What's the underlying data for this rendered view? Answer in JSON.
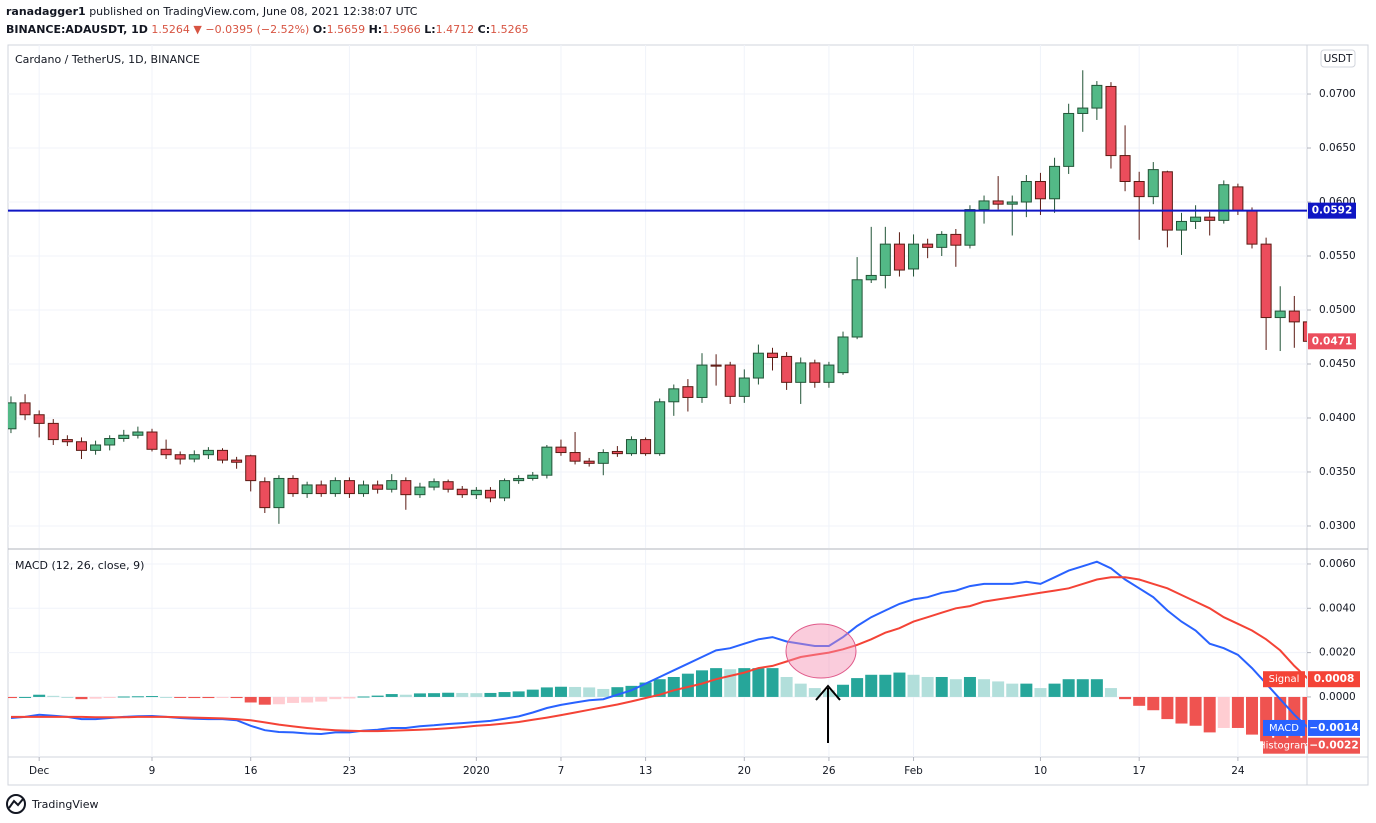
{
  "header": {
    "user": "ranadagger1",
    "published": "published on TradingView.com, June 08, 2021 12:38:07 UTC",
    "symbol": "BINANCE:ADAUSDT, 1D",
    "last": "1.5264",
    "arrow": "▼",
    "change": "−0.0395 (−2.52%)",
    "ohlc": [
      {
        "label": "O:",
        "value": "1.5659"
      },
      {
        "label": "H:",
        "value": "1.5966"
      },
      {
        "label": "L:",
        "value": "1.4712"
      },
      {
        "label": "C:",
        "value": "1.5265"
      }
    ]
  },
  "brand": "TradingView",
  "chart_data": [
    {
      "type": "candlestick",
      "title": "Cardano / TetherUS, 1D, BINANCE",
      "currency": "USDT",
      "up_color": "#53b987",
      "down_color": "#eb4d5c",
      "up_border": "#225437",
      "down_border": "#5b1a13",
      "open": [
        0.039,
        0.0414,
        0.0403,
        0.0395,
        0.038,
        0.0378,
        0.037,
        0.0375,
        0.0381,
        0.0384,
        0.0387,
        0.0371,
        0.0366,
        0.0362,
        0.0366,
        0.037,
        0.0361,
        0.0365,
        0.0341,
        0.0317,
        0.0344,
        0.033,
        0.0338,
        0.033,
        0.0342,
        0.033,
        0.0338,
        0.0334,
        0.0342,
        0.0329,
        0.0336,
        0.0341,
        0.0334,
        0.0329,
        0.0333,
        0.0326,
        0.0342,
        0.0344,
        0.0347,
        0.0373,
        0.0368,
        0.036,
        0.0358,
        0.0369,
        0.0367,
        0.038,
        0.0367,
        0.0415,
        0.0429,
        0.0419,
        0.0449,
        0.0449,
        0.042,
        0.0437,
        0.046,
        0.0457,
        0.0433,
        0.0451,
        0.0433,
        0.0442,
        0.0475,
        0.0528,
        0.0532,
        0.0561,
        0.0538,
        0.0561,
        0.0558,
        0.057,
        0.056,
        0.0593,
        0.0601,
        0.0598,
        0.06,
        0.0619,
        0.0603,
        0.0633,
        0.0682,
        0.0687,
        0.0707,
        0.0643,
        0.0619,
        0.0605,
        0.0628,
        0.0574,
        0.0582,
        0.0586,
        0.0583,
        0.0614,
        0.0592,
        0.0561,
        0.0493,
        0.0499,
        0.0489
      ],
      "high": [
        0.042,
        0.0422,
        0.0407,
        0.0399,
        0.0384,
        0.0382,
        0.0379,
        0.0384,
        0.0389,
        0.0392,
        0.039,
        0.038,
        0.0369,
        0.037,
        0.0373,
        0.0372,
        0.0364,
        0.0366,
        0.0345,
        0.0347,
        0.0347,
        0.0341,
        0.0342,
        0.0345,
        0.0345,
        0.0342,
        0.0342,
        0.0348,
        0.0345,
        0.034,
        0.0344,
        0.0343,
        0.0337,
        0.0336,
        0.0336,
        0.0344,
        0.0347,
        0.035,
        0.0375,
        0.038,
        0.0387,
        0.0363,
        0.0371,
        0.0374,
        0.0383,
        0.0382,
        0.0418,
        0.0431,
        0.0436,
        0.046,
        0.0459,
        0.0452,
        0.0445,
        0.0468,
        0.0465,
        0.0461,
        0.0456,
        0.0454,
        0.0452,
        0.048,
        0.0549,
        0.0577,
        0.0577,
        0.0572,
        0.057,
        0.0566,
        0.0573,
        0.0575,
        0.0597,
        0.0606,
        0.0624,
        0.0606,
        0.0625,
        0.0627,
        0.0641,
        0.0691,
        0.0722,
        0.0712,
        0.0711,
        0.0671,
        0.0628,
        0.0637,
        0.0629,
        0.059,
        0.0597,
        0.0591,
        0.062,
        0.0617,
        0.0595,
        0.0567,
        0.0522,
        0.0513,
        0.0495
      ],
      "low": [
        0.0386,
        0.0398,
        0.0382,
        0.0375,
        0.0374,
        0.0362,
        0.0366,
        0.037,
        0.0378,
        0.0381,
        0.0369,
        0.0362,
        0.0357,
        0.0359,
        0.0362,
        0.0358,
        0.0353,
        0.0332,
        0.0312,
        0.0302,
        0.0327,
        0.0326,
        0.0327,
        0.0327,
        0.0326,
        0.0327,
        0.033,
        0.0331,
        0.0315,
        0.0326,
        0.0333,
        0.0331,
        0.0326,
        0.0325,
        0.0322,
        0.0323,
        0.0339,
        0.0342,
        0.0344,
        0.0365,
        0.0357,
        0.0355,
        0.0347,
        0.0364,
        0.0365,
        0.0365,
        0.0365,
        0.0402,
        0.0406,
        0.0414,
        0.043,
        0.0413,
        0.0414,
        0.0431,
        0.0444,
        0.0426,
        0.0413,
        0.0428,
        0.0428,
        0.044,
        0.0473,
        0.0525,
        0.052,
        0.0531,
        0.0531,
        0.0548,
        0.055,
        0.054,
        0.0557,
        0.058,
        0.0593,
        0.0569,
        0.0586,
        0.0588,
        0.059,
        0.0626,
        0.0665,
        0.0676,
        0.0631,
        0.061,
        0.0565,
        0.0598,
        0.0558,
        0.0551,
        0.0575,
        0.0569,
        0.058,
        0.0588,
        0.0557,
        0.0463,
        0.0462,
        0.0465,
        0.0467
      ],
      "close": [
        0.0414,
        0.0403,
        0.0395,
        0.038,
        0.0378,
        0.037,
        0.0375,
        0.0381,
        0.0384,
        0.0387,
        0.0371,
        0.0366,
        0.0362,
        0.0366,
        0.037,
        0.0361,
        0.0359,
        0.0342,
        0.0317,
        0.0344,
        0.033,
        0.0338,
        0.033,
        0.0342,
        0.033,
        0.0338,
        0.0334,
        0.0342,
        0.0329,
        0.0336,
        0.0341,
        0.0334,
        0.0329,
        0.0333,
        0.0326,
        0.0342,
        0.0344,
        0.0347,
        0.0373,
        0.0368,
        0.036,
        0.0358,
        0.0368,
        0.0367,
        0.038,
        0.0367,
        0.0415,
        0.0427,
        0.0419,
        0.0449,
        0.0448,
        0.042,
        0.0437,
        0.046,
        0.0456,
        0.0433,
        0.0451,
        0.0433,
        0.0449,
        0.0475,
        0.0528,
        0.0532,
        0.0561,
        0.0537,
        0.0561,
        0.0558,
        0.057,
        0.056,
        0.0593,
        0.0601,
        0.0598,
        0.06,
        0.0619,
        0.0603,
        0.0633,
        0.0682,
        0.0687,
        0.0708,
        0.0643,
        0.0619,
        0.0605,
        0.063,
        0.0574,
        0.0582,
        0.0586,
        0.0583,
        0.0616,
        0.0592,
        0.0561,
        0.0493,
        0.0499,
        0.0489,
        0.0471
      ],
      "xlim": [
        -0.21,
        91.9
      ],
      "ylim": [
        0.02796,
        0.07454
      ],
      "yticks": [
        {
          "value": 0.03,
          "label": "0.0300"
        },
        {
          "value": 0.035,
          "label": "0.0350"
        },
        {
          "value": 0.04,
          "label": "0.0400"
        },
        {
          "value": 0.045,
          "label": "0.0450"
        },
        {
          "value": 0.05,
          "label": "0.0500"
        },
        {
          "value": 0.055,
          "label": "0.0550"
        },
        {
          "value": 0.06,
          "label": "0.0600"
        },
        {
          "value": 0.065,
          "label": "0.0650"
        },
        {
          "value": 0.07,
          "label": "0.0700"
        }
      ],
      "grid": true,
      "hline": {
        "value": 0.0592,
        "color": "#0f16c4"
      }
    },
    {
      "type": "macd",
      "title": "MACD (12, 26, close, 9)",
      "xlim": [
        -0.21,
        91.9
      ],
      "ylim": [
        -0.00271,
        0.00663
      ],
      "yticks": [
        {
          "value": 0,
          "label": "0.0000"
        },
        {
          "value": 0.002,
          "label": "0.0020"
        },
        {
          "value": 0.004,
          "label": "0.0040"
        },
        {
          "value": 0.006,
          "label": "0.0060"
        }
      ],
      "xticks": [
        {
          "value": 2,
          "label": "Dec"
        },
        {
          "value": 10,
          "label": "9"
        },
        {
          "value": 17,
          "label": "16"
        },
        {
          "value": 24,
          "label": "23"
        },
        {
          "value": 33,
          "label": "2020"
        },
        {
          "value": 39,
          "label": "7"
        },
        {
          "value": 45,
          "label": "13"
        },
        {
          "value": 52,
          "label": "20"
        },
        {
          "value": 58,
          "label": "26"
        },
        {
          "value": 64,
          "label": "Feb"
        },
        {
          "value": 73,
          "label": "10"
        },
        {
          "value": 80,
          "label": "17"
        },
        {
          "value": 87,
          "label": "24"
        }
      ],
      "grid": true,
      "series": [
        {
          "name": "Histogram",
          "color": "#ef5350",
          "colors": {
            "up_rising": "#26a69a",
            "up_falling": "#b2dfdb",
            "down_falling": "#ef5350",
            "down_rising": "#ffcdd2"
          },
          "last_label": "−0.0022",
          "values": [
            -5e-05,
            0,
            0.0001,
            5e-05,
            0,
            -0.0001,
            -8e-05,
            -3e-05,
            2e-05,
            3e-05,
            4e-05,
            0,
            -3e-05,
            -5e-05,
            -5e-05,
            -3e-05,
            -5e-05,
            -0.00025,
            -0.00035,
            -0.00033,
            -0.00027,
            -0.00025,
            -0.00021,
            -0.0001,
            -7e-05,
            2e-05,
            6e-05,
            0.00013,
            0.0001,
            0.00016,
            0.00017,
            0.00019,
            0.00018,
            0.00017,
            0.00018,
            0.00022,
            0.00025,
            0.00033,
            0.00043,
            0.00046,
            0.00045,
            0.00043,
            0.00036,
            0.00044,
            0.0005,
            0.00065,
            0.0008,
            0.0009,
            0.00105,
            0.0012,
            0.0013,
            0.00125,
            0.0013,
            0.0013,
            0.0013,
            0.0009,
            0.0006,
            0.0004,
            0.0003,
            0.00055,
            0.00085,
            0.001,
            0.001,
            0.0011,
            0.001,
            0.0009,
            0.0009,
            0.0008,
            0.0009,
            0.0008,
            0.0007,
            0.0006,
            0.0006,
            0.0004,
            0.0006,
            0.0008,
            0.0008,
            0.0008,
            0.0004,
            -0.0001,
            -0.0004,
            -0.0006,
            -0.001,
            -0.0012,
            -0.0013,
            -0.0016,
            -0.0014,
            -0.0014,
            -0.0017,
            -0.002,
            -0.0022,
            -0.0022,
            -0.0022
          ]
        },
        {
          "name": "MACD",
          "color": "#2962ff",
          "last_label": "−0.0014",
          "values": [
            -0.00095,
            -0.0009,
            -0.0008,
            -0.00085,
            -0.0009,
            -0.001,
            -0.001,
            -0.00095,
            -0.0009,
            -0.00087,
            -0.00086,
            -0.0009,
            -0.00095,
            -0.00098,
            -0.001,
            -0.001,
            -0.00105,
            -0.0013,
            -0.0015,
            -0.00158,
            -0.0016,
            -0.00165,
            -0.00167,
            -0.0016,
            -0.0016,
            -0.00152,
            -0.00148,
            -0.0014,
            -0.0014,
            -0.00132,
            -0.00128,
            -0.00122,
            -0.00118,
            -0.00113,
            -0.00108,
            -0.00098,
            -0.00088,
            -0.0007,
            -0.0005,
            -0.00036,
            -0.00025,
            -0.00015,
            -0.0001,
            0.0001,
            0.0003,
            0.0006,
            0.0009,
            0.0012,
            0.0015,
            0.0018,
            0.0021,
            0.0022,
            0.0024,
            0.0026,
            0.0027,
            0.0025,
            0.0024,
            0.0023,
            0.0023,
            0.0027,
            0.0032,
            0.0036,
            0.0039,
            0.0042,
            0.0044,
            0.0045,
            0.0047,
            0.0048,
            0.005,
            0.0051,
            0.0051,
            0.0051,
            0.0052,
            0.0051,
            0.0054,
            0.0057,
            0.0059,
            0.0061,
            0.0058,
            0.0053,
            0.0049,
            0.0045,
            0.0039,
            0.0034,
            0.003,
            0.0024,
            0.0022,
            0.0019,
            0.0013,
            0.0006,
            -0.0001,
            -0.0008,
            -0.0014
          ]
        },
        {
          "name": "Signal",
          "color": "#f44336",
          "last_label": "0.0008",
          "values": [
            -0.0009,
            -0.0009,
            -0.0009,
            -0.0009,
            -0.0009,
            -0.0009,
            -0.00092,
            -0.00092,
            -0.00092,
            -0.0009,
            -0.0009,
            -0.0009,
            -0.00092,
            -0.00093,
            -0.00095,
            -0.00097,
            -0.001,
            -0.00105,
            -0.00115,
            -0.00125,
            -0.00133,
            -0.0014,
            -0.00146,
            -0.0015,
            -0.00153,
            -0.00154,
            -0.00154,
            -0.00153,
            -0.0015,
            -0.00148,
            -0.00145,
            -0.00141,
            -0.00136,
            -0.0013,
            -0.00126,
            -0.0012,
            -0.00113,
            -0.00103,
            -0.00093,
            -0.00082,
            -0.0007,
            -0.00058,
            -0.00046,
            -0.00034,
            -0.0002,
            -5e-05,
            0.0001,
            0.0003,
            0.00045,
            0.0006,
            0.0008,
            0.00095,
            0.0011,
            0.0013,
            0.0014,
            0.0016,
            0.0018,
            0.0019,
            0.002,
            0.00215,
            0.00235,
            0.0026,
            0.0029,
            0.0031,
            0.0034,
            0.0036,
            0.0038,
            0.004,
            0.0041,
            0.0043,
            0.0044,
            0.0045,
            0.0046,
            0.0047,
            0.0048,
            0.0049,
            0.0051,
            0.0053,
            0.0054,
            0.0054,
            0.0053,
            0.0051,
            0.0049,
            0.0046,
            0.0043,
            0.004,
            0.0036,
            0.0033,
            0.003,
            0.0026,
            0.0021,
            0.0014,
            0.0008
          ]
        }
      ]
    }
  ]
}
